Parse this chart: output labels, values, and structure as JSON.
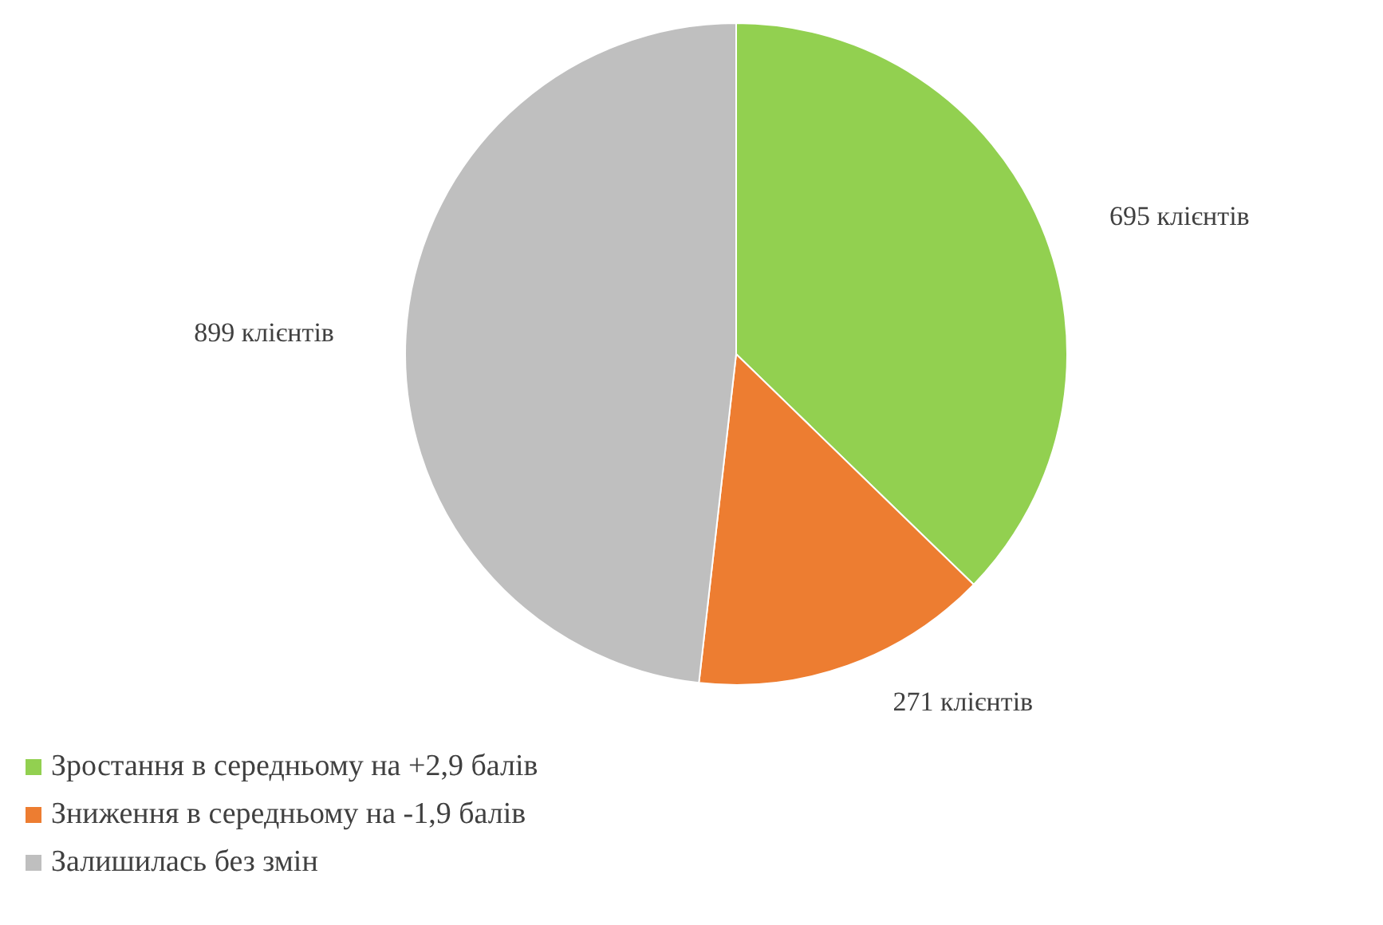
{
  "chart_data": {
    "type": "pie",
    "categories": [
      "Зростання  в середньому на +2,9 балів",
      "Зниження  в середньому на -1,9 балів",
      "Залишилась без змін"
    ],
    "values": [
      695,
      271,
      899
    ],
    "value_labels": [
      "695 клієнтів",
      "271 клієнтів",
      "899 клієнтів"
    ],
    "colors": [
      "#92d050",
      "#ed7d31",
      "#bfbfbf"
    ],
    "legend": "bottom left"
  }
}
